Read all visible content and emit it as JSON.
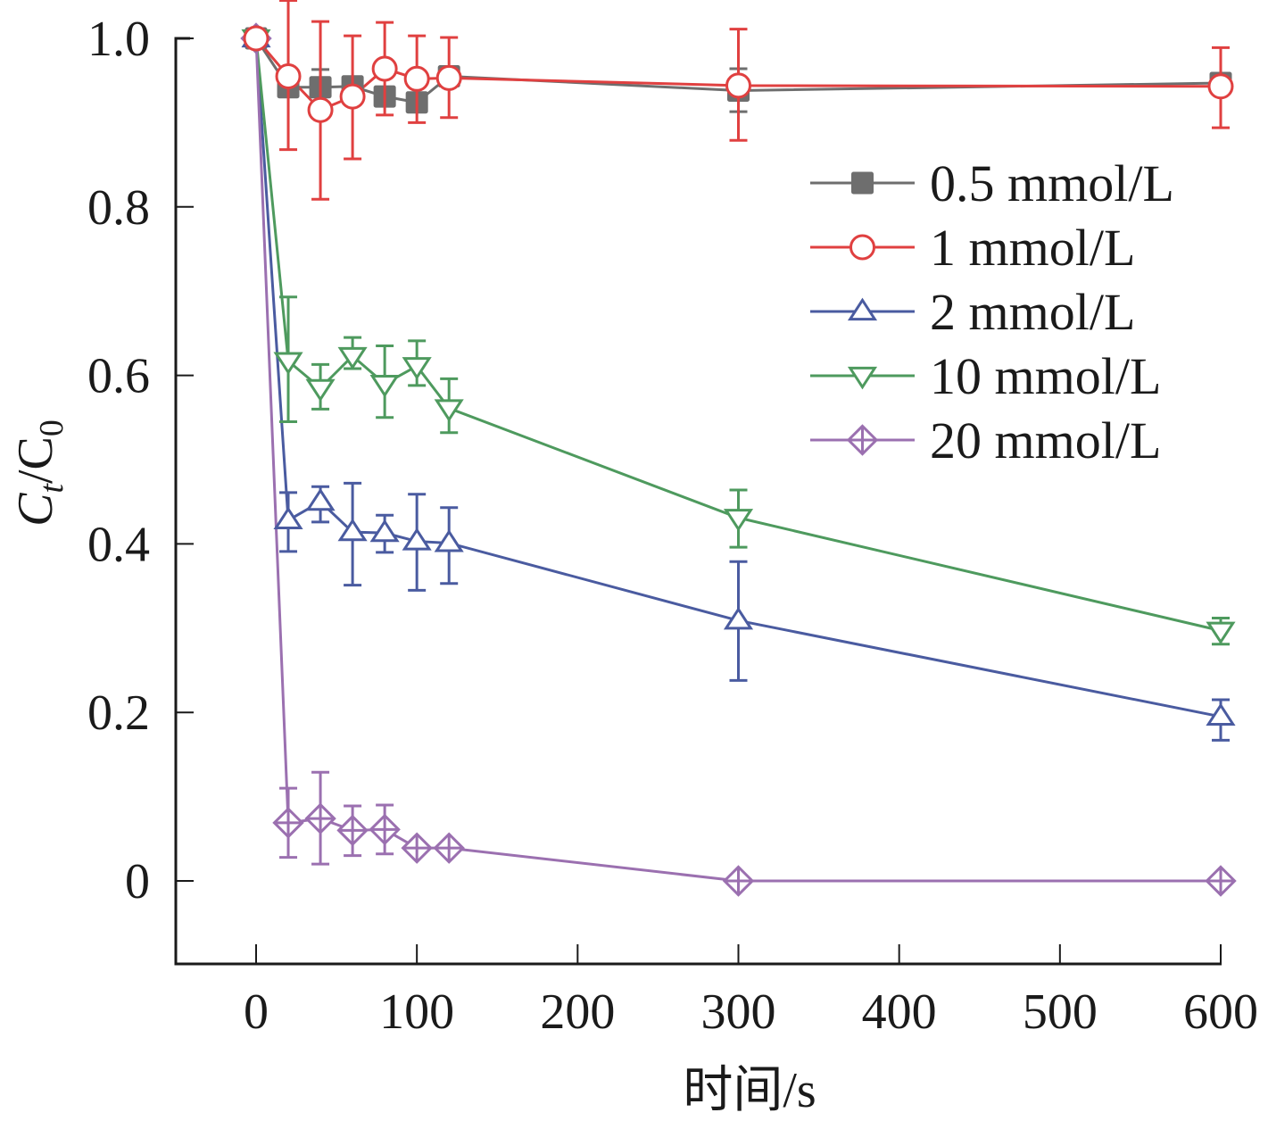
{
  "chart_data": {
    "type": "line",
    "title": "",
    "xlabel": "时间/s",
    "ylabel": {
      "main": "C",
      "sub1": "t",
      "sep": "/C",
      "sub2": "0"
    },
    "xlim": [
      -50,
      600
    ],
    "ylim": [
      -0.1,
      1.0
    ],
    "xticks": [
      0,
      100,
      200,
      300,
      400,
      500,
      600
    ],
    "xtick_labels": [
      "0",
      "100",
      "200",
      "300",
      "400",
      "500",
      "600"
    ],
    "yticks": [
      0,
      0.2,
      0.4,
      0.6,
      0.8,
      1.0
    ],
    "ytick_labels": [
      "0",
      "0.2",
      "0.4",
      "0.6",
      "0.8",
      "1.0"
    ],
    "grid": false,
    "legend_position": "top-right",
    "x": [
      0,
      20,
      40,
      60,
      80,
      100,
      120,
      300,
      600
    ],
    "series": [
      {
        "name": "0.5 mmol/L",
        "color": "#6e6e6e",
        "marker": "square-filled",
        "values": [
          1.0,
          0.942,
          0.942,
          0.943,
          0.931,
          0.924,
          0.955,
          0.938,
          0.947
        ],
        "err_low": [
          0,
          0.01,
          0.02,
          0.01,
          0.01,
          0.01,
          0.01,
          0.025,
          0.01
        ],
        "err_high": [
          0,
          0.01,
          0.021,
          0.01,
          0.01,
          0.01,
          0.01,
          0.026,
          0.01
        ]
      },
      {
        "name": "1 mmol/L",
        "color": "#e04040",
        "marker": "circle-open",
        "values": [
          1.0,
          0.955,
          0.915,
          0.931,
          0.964,
          0.952,
          0.953,
          0.944,
          0.943
        ],
        "err_low": [
          0,
          0.087,
          0.106,
          0.074,
          0.055,
          0.052,
          0.047,
          0.065,
          0.049
        ],
        "err_high": [
          0,
          0.09,
          0.105,
          0.072,
          0.055,
          0.051,
          0.048,
          0.067,
          0.046
        ]
      },
      {
        "name": "2 mmol/L",
        "color": "#4a5ba0",
        "marker": "triangle-up-open",
        "values": [
          1.0,
          0.428,
          0.45,
          0.414,
          0.413,
          0.403,
          0.401,
          0.309,
          0.195
        ],
        "err_low": [
          0,
          0.037,
          0.024,
          0.063,
          0.023,
          0.058,
          0.048,
          0.071,
          0.028
        ],
        "err_high": [
          0,
          0.033,
          0.018,
          0.058,
          0.021,
          0.056,
          0.042,
          0.07,
          0.02
        ]
      },
      {
        "name": "10 mmol/L",
        "color": "#4e9a5e",
        "marker": "triangle-down-open",
        "values": [
          1.0,
          0.617,
          0.585,
          0.623,
          0.59,
          0.611,
          0.561,
          0.431,
          0.297
        ],
        "err_low": [
          0,
          0.072,
          0.025,
          0.015,
          0.04,
          0.023,
          0.029,
          0.035,
          0.016
        ],
        "err_high": [
          0,
          0.076,
          0.028,
          0.022,
          0.045,
          0.03,
          0.035,
          0.033,
          0.015
        ]
      },
      {
        "name": "20 mmol/L",
        "color": "#9b70b0",
        "marker": "diamond-cross-open",
        "values": [
          1.0,
          0.069,
          0.074,
          0.06,
          0.061,
          0.039,
          0.039,
          0.0,
          0.0
        ],
        "err_low": [
          0,
          0.041,
          0.054,
          0.03,
          0.029,
          0,
          0,
          0,
          0
        ],
        "err_high": [
          0,
          0.041,
          0.055,
          0.029,
          0.029,
          0,
          0,
          0,
          0
        ]
      }
    ]
  }
}
